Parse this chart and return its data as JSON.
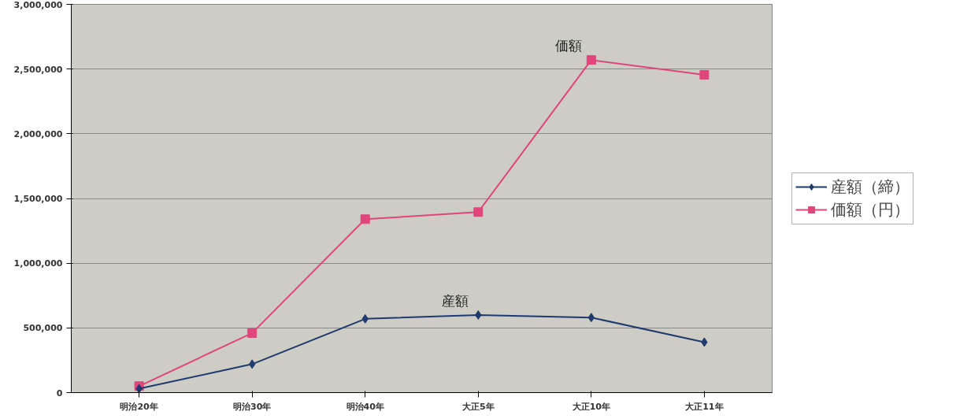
{
  "chart_data": {
    "type": "line",
    "categories": [
      "明治20年",
      "明治30年",
      "明治40年",
      "大正5年",
      "大正10年",
      "大正11年"
    ],
    "series": [
      {
        "name": "産額（締）",
        "color": "#1f3a6e",
        "marker": "diamond",
        "values": [
          30000,
          220000,
          570000,
          600000,
          580000,
          390000
        ]
      },
      {
        "name": "価額（円）",
        "color": "#e0457b",
        "marker": "square",
        "values": [
          50000,
          460000,
          1340000,
          1395000,
          2570000,
          2455000
        ]
      }
    ],
    "ylim": [
      0,
      3000000
    ],
    "yticks": [
      {
        "value": 0,
        "label": "0"
      },
      {
        "value": 500000,
        "label": "500,000"
      },
      {
        "value": 1000000,
        "label": "1,000,000"
      },
      {
        "value": 1500000,
        "label": "1,500,000"
      },
      {
        "value": 2000000,
        "label": "2,000,000"
      },
      {
        "value": 2500000,
        "label": "2,500,000"
      },
      {
        "value": 3000000,
        "label": "3,000,000"
      }
    ],
    "annotations": [
      "産額",
      "価額"
    ],
    "grid": "y",
    "legend": "right"
  }
}
